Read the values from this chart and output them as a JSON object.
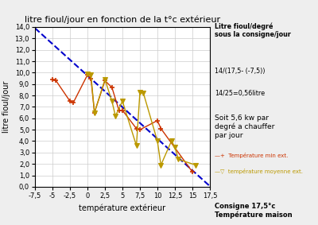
{
  "title": "litre fioul/jour en fonction de la t°c extérieur",
  "xlabel": "température extérieur",
  "ylabel": "litre fioul/jour",
  "xlim": [
    -7.5,
    17.5
  ],
  "ylim": [
    0,
    14.0
  ],
  "xticks": [
    -7.5,
    -5.0,
    -2.5,
    0.0,
    2.5,
    5.0,
    7.5,
    10.0,
    12.5,
    15.0,
    17.5
  ],
  "yticks": [
    0.0,
    1.0,
    2.0,
    3.0,
    4.0,
    5.0,
    6.0,
    7.0,
    8.0,
    9.0,
    10.0,
    11.0,
    12.0,
    13.0,
    14.0
  ],
  "dashed_line_x": [
    -7.5,
    17.5
  ],
  "dashed_line_y": [
    13.9,
    0.05
  ],
  "red_x": [
    -5.0,
    -4.5,
    -2.5,
    -2.0,
    0.0,
    0.5,
    1.0,
    2.5,
    3.5,
    4.5,
    5.0,
    7.0,
    7.5,
    10.0,
    10.5,
    15.0
  ],
  "red_y": [
    9.4,
    9.3,
    7.5,
    7.4,
    9.8,
    9.5,
    6.5,
    9.3,
    8.7,
    6.7,
    6.7,
    5.1,
    5.0,
    5.8,
    5.1,
    1.3
  ],
  "yellow_x": [
    0.0,
    0.5,
    1.0,
    2.5,
    3.5,
    4.0,
    5.0,
    7.0,
    7.5,
    8.0,
    10.0,
    10.5,
    12.0,
    12.5,
    13.0,
    15.5
  ],
  "yellow_y": [
    9.9,
    9.8,
    6.5,
    9.4,
    7.5,
    6.2,
    7.5,
    3.6,
    8.3,
    8.2,
    4.0,
    1.9,
    4.0,
    3.5,
    2.4,
    1.9
  ],
  "annotation_top": "Litre fioul/degré\nsous la consigne/jour",
  "annotation_formula1": "14/(17,5- (-7,5))",
  "annotation_formula2": "14/25=0,56litre",
  "annotation_result": "Soit 5,6 kw par\ndegré a chauffer\npar jour",
  "bottom_annotation": "Consigne 17,5°c\nTempérature maison",
  "legend_red": "Température min ext.",
  "legend_yellow": "température moyenne ext.",
  "bg_color": "#eeeeee",
  "plot_bg": "#ffffff",
  "red_color": "#cc3300",
  "yellow_color": "#bb9900",
  "dashed_color": "#0000cc"
}
